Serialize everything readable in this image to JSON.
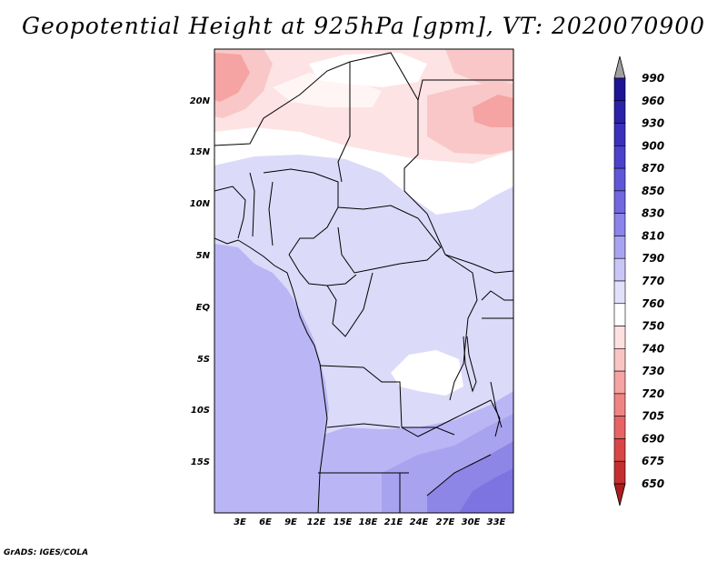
{
  "title": "Geopotential Height at 925hPa [gpm], VT: 2020070900",
  "credit": "GrADS: IGES/COLA",
  "map": {
    "lat_labels": [
      "20N",
      "15N",
      "10N",
      "5N",
      "EQ",
      "5S",
      "10S",
      "15S"
    ],
    "lon_labels": [
      "3E",
      "6E",
      "9E",
      "12E",
      "15E",
      "18E",
      "21E",
      "24E",
      "27E",
      "30E",
      "33E"
    ],
    "lon_range": [
      0,
      35
    ],
    "lat_range": [
      -20,
      25
    ]
  },
  "colorbar": {
    "levels": [
      "990",
      "960",
      "930",
      "900",
      "870",
      "850",
      "830",
      "810",
      "790",
      "770",
      "760",
      "750",
      "740",
      "730",
      "720",
      "705",
      "690",
      "675",
      "650"
    ],
    "colors": [
      "#1e1495",
      "#2a22a8",
      "#3a30bc",
      "#4b42cc",
      "#5e57d8",
      "#7168e0",
      "#8b84ea",
      "#a9a4f1",
      "#c9c6f7",
      "#e2e1fb",
      "#ffffff",
      "#fde0e0",
      "#fac4c4",
      "#f5a3a3",
      "#ef8484",
      "#e76464",
      "#d94646",
      "#c52f2f",
      "#ad1d1d"
    ]
  },
  "regions": [
    {
      "name": "atlantic",
      "color": "#bab6f5"
    },
    {
      "name": "central-africa",
      "color": "#dcdaf9"
    },
    {
      "name": "sahel",
      "color": "#fff5f5"
    },
    {
      "name": "sahara",
      "color": "#fde3e3"
    },
    {
      "name": "sudan-high",
      "color": "#f9c7c7"
    },
    {
      "name": "southern-africa",
      "color": "#a8a3ef"
    },
    {
      "name": "southeast-low",
      "color": "#7d74e2"
    }
  ]
}
